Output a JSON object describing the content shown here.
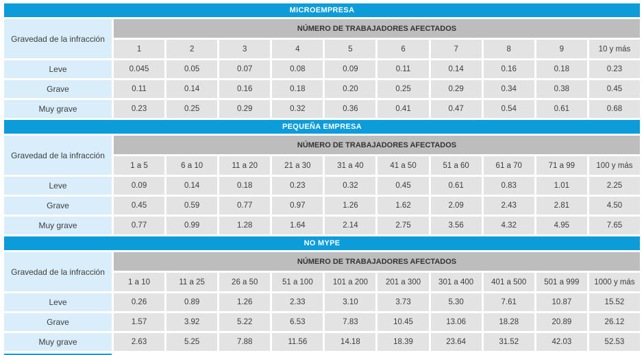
{
  "colors": {
    "section_header_blue": "#0c9cda",
    "workers_band_gray": "#bdbdbd",
    "value_cell_gray": "#e3e3e3",
    "label_cell_light_blue": "#d9edfa",
    "text": "#3d3d3d"
  },
  "labels": {
    "gravity_header": "Gravedad de la infracción",
    "workers_header": "NÚMERO DE TRABAJADORES AFECTADOS"
  },
  "sections": [
    {
      "title": "MICROEMPRESA",
      "columns": [
        "1",
        "2",
        "3",
        "4",
        "5",
        "6",
        "7",
        "8",
        "9",
        "10 y más"
      ],
      "rows": [
        {
          "label": "Leve",
          "values": [
            "0.045",
            "0.05",
            "0.07",
            "0.08",
            "0.09",
            "0.11",
            "0.14",
            "0.16",
            "0.18",
            "0.23"
          ]
        },
        {
          "label": "Grave",
          "values": [
            "0.11",
            "0.14",
            "0.16",
            "0.18",
            "0.20",
            "0.25",
            "0.29",
            "0.34",
            "0.38",
            "0.45"
          ]
        },
        {
          "label": "Muy grave",
          "values": [
            "0.23",
            "0.25",
            "0.29",
            "0.32",
            "0.36",
            "0.41",
            "0.47",
            "0.54",
            "0.61",
            "0.68"
          ]
        }
      ]
    },
    {
      "title": "PEQUEÑA EMPRESA",
      "columns": [
        "1 a 5",
        "6 a 10",
        "11 a 20",
        "21 a 30",
        "31 a 40",
        "41 a 50",
        "51 a 60",
        "61 a 70",
        "71 a 99",
        "100 y más"
      ],
      "rows": [
        {
          "label": "Leve",
          "values": [
            "0.09",
            "0.14",
            "0.18",
            "0.23",
            "0.32",
            "0.45",
            "0.61",
            "0.83",
            "1.01",
            "2.25"
          ]
        },
        {
          "label": "Grave",
          "values": [
            "0.45",
            "0.59",
            "0.77",
            "0.97",
            "1.26",
            "1.62",
            "2.09",
            "2.43",
            "2.81",
            "4.50"
          ]
        },
        {
          "label": "Muy grave",
          "values": [
            "0.77",
            "0.99",
            "1.28",
            "1.64",
            "2.14",
            "2.75",
            "3.56",
            "4.32",
            "4.95",
            "7.65"
          ]
        }
      ]
    },
    {
      "title": "NO MYPE",
      "columns": [
        "1 a 10",
        "11 a 25",
        "26 a 50",
        "51 a 100",
        "101 a 200",
        "201 a 300",
        "301 a 400",
        "401 a 500",
        "501 a 999",
        "1000 y más"
      ],
      "rows": [
        {
          "label": "Leve",
          "values": [
            "0.26",
            "0.89",
            "1.26",
            "2.33",
            "3.10",
            "3.73",
            "5.30",
            "7.61",
            "10.87",
            "15.52"
          ]
        },
        {
          "label": "Grave",
          "values": [
            "1.57",
            "3.92",
            "5.22",
            "6.53",
            "7.83",
            "10.45",
            "13.06",
            "18.28",
            "20.89",
            "26.12"
          ]
        },
        {
          "label": "Muy grave",
          "values": [
            "2.63",
            "5.25",
            "7.88",
            "11.56",
            "14.18",
            "18.39",
            "23.64",
            "31.52",
            "42.03",
            "52.53"
          ]
        }
      ]
    }
  ]
}
